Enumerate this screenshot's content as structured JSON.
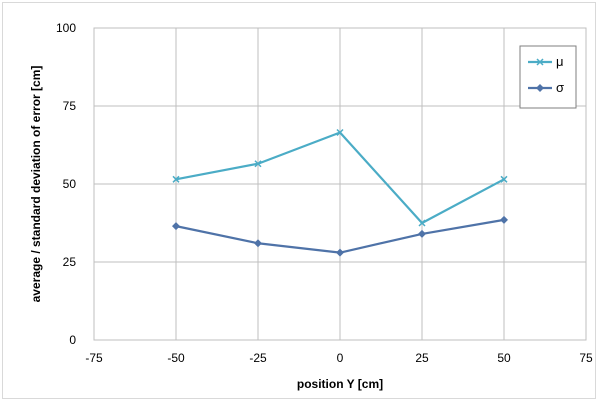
{
  "chart_data": {
    "type": "line",
    "x": [
      -50,
      -25,
      0,
      25,
      50
    ],
    "series": [
      {
        "name": "μ",
        "values": [
          51.5,
          56.5,
          66.5,
          37.5,
          51.5
        ],
        "color": "#4bacc6",
        "marker": "x"
      },
      {
        "name": "σ",
        "values": [
          36.5,
          31,
          28,
          34,
          38.5
        ],
        "color": "#4f73a8",
        "marker": "diamond"
      }
    ],
    "xlabel": "position Y [cm]",
    "ylabel": "average  / standard deviation of error [cm]",
    "xlim": [
      -75,
      75
    ],
    "ylim": [
      0,
      100
    ],
    "xticks": [
      -75,
      -50,
      -25,
      0,
      25,
      50,
      75
    ],
    "yticks": [
      0,
      25,
      50,
      75,
      100
    ],
    "grid": true,
    "legend_position": "top-right"
  }
}
